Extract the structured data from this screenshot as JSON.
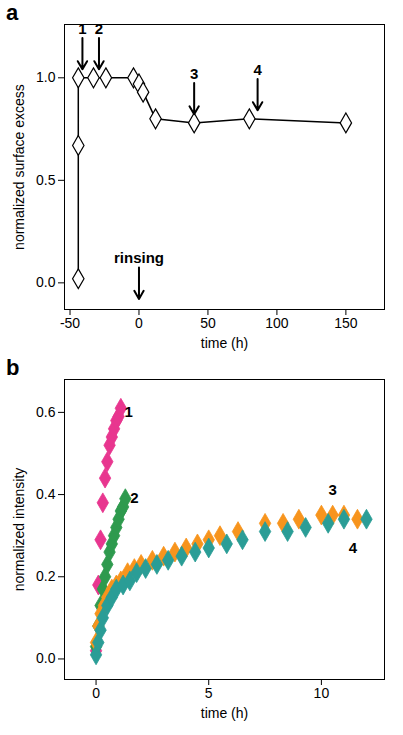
{
  "chart_data": [
    {
      "type": "line",
      "title": "a",
      "x_label": "time (h)",
      "y_label": "normalized surface excess",
      "x": [
        -44,
        -44,
        -44,
        -33,
        -24,
        -4,
        0,
        3,
        12,
        40,
        80,
        150
      ],
      "values": [
        0.02,
        0.67,
        1.0,
        1.0,
        1.0,
        1.0,
        0.97,
        0.93,
        0.8,
        0.78,
        0.8,
        0.78
      ],
      "color": "#000000",
      "marker": "diamond",
      "xlim": [
        -54,
        178
      ],
      "xticks": [
        -50,
        0,
        50,
        100,
        150
      ],
      "ylim": [
        -0.13,
        1.26
      ],
      "yticks": [
        {
          "value": 0,
          "label": "0.0"
        },
        {
          "value": 0.5,
          "label": "0.5"
        },
        {
          "value": 1,
          "label": "1.0"
        }
      ],
      "grid": false,
      "annotations": [
        {
          "text": "1",
          "x": -41,
          "y": 1.0,
          "marker": "arrow"
        },
        {
          "text": "2",
          "x": -29,
          "y": 1.0,
          "marker": "arrow"
        },
        {
          "text": "3",
          "x": 40,
          "y": 0.78,
          "marker": "arrow"
        },
        {
          "text": "4",
          "x": 86,
          "y": 0.8,
          "marker": "arrow"
        },
        {
          "text": "rinsing",
          "x": 0,
          "y": -0.12,
          "marker": "arrow"
        }
      ]
    },
    {
      "type": "scatter",
      "title": "b",
      "x_label": "time (h)",
      "y_label": "normalized intensity",
      "marker": "diamond",
      "series": [
        {
          "color": "#e8368f",
          "x": [
            0,
            0.1,
            0.2,
            0.3,
            0.4,
            0.5,
            0.6,
            0.7,
            0.8,
            0.9,
            1.0,
            1.1
          ],
          "values": [
            0.02,
            0.18,
            0.29,
            0.38,
            0.44,
            0.48,
            0.52,
            0.54,
            0.56,
            0.58,
            0.59,
            0.61
          ]
        },
        {
          "color": "#2e9a4e",
          "x": [
            0,
            0.1,
            0.2,
            0.3,
            0.4,
            0.5,
            0.6,
            0.7,
            0.8,
            0.9,
            1.0,
            1.1,
            1.2,
            1.3
          ],
          "values": [
            0.03,
            0.08,
            0.13,
            0.17,
            0.2,
            0.23,
            0.26,
            0.28,
            0.3,
            0.32,
            0.34,
            0.36,
            0.37,
            0.39
          ]
        },
        {
          "color": "#f7941d",
          "x": [
            0,
            0.1,
            0.2,
            0.35,
            0.5,
            0.7,
            0.9,
            1.1,
            1.4,
            1.7,
            2.0,
            2.5,
            3.0,
            3.5,
            4.0,
            4.5,
            5.0,
            5.5,
            6.3,
            7.5,
            8.3,
            9.0,
            10.0,
            10.5,
            11.0,
            11.6
          ],
          "values": [
            0.04,
            0.08,
            0.11,
            0.13,
            0.15,
            0.17,
            0.18,
            0.19,
            0.21,
            0.22,
            0.23,
            0.24,
            0.25,
            0.26,
            0.27,
            0.28,
            0.29,
            0.3,
            0.31,
            0.33,
            0.33,
            0.34,
            0.35,
            0.35,
            0.35,
            0.34
          ]
        },
        {
          "color": "#2a9d96",
          "x": [
            0,
            0.1,
            0.2,
            0.3,
            0.5,
            0.7,
            0.9,
            1.2,
            1.5,
            1.8,
            2.2,
            2.7,
            3.2,
            3.8,
            4.4,
            5.0,
            5.8,
            6.5,
            7.5,
            8.5,
            9.3,
            10.3,
            11.0,
            12.0
          ],
          "values": [
            0.01,
            0.04,
            0.07,
            0.1,
            0.13,
            0.15,
            0.17,
            0.18,
            0.19,
            0.21,
            0.22,
            0.23,
            0.24,
            0.25,
            0.26,
            0.27,
            0.28,
            0.29,
            0.31,
            0.31,
            0.32,
            0.33,
            0.34,
            0.34
          ]
        }
      ],
      "xlim": [
        -1.4,
        12.8
      ],
      "xticks": [
        0,
        5,
        10
      ],
      "ylim": [
        -0.05,
        0.68
      ],
      "yticks": [
        {
          "value": 0,
          "label": "0.0"
        },
        {
          "value": 0.2,
          "label": "0.2"
        },
        {
          "value": 0.4,
          "label": "0.4"
        },
        {
          "value": 0.6,
          "label": "0.6"
        }
      ],
      "grid": false,
      "annotations": [
        {
          "text": "1",
          "x": 1.45,
          "y": 0.6
        },
        {
          "text": "2",
          "x": 1.7,
          "y": 0.39
        },
        {
          "text": "3",
          "x": 10.5,
          "y": 0.41
        },
        {
          "text": "4",
          "x": 11.4,
          "y": 0.27
        }
      ]
    }
  ]
}
